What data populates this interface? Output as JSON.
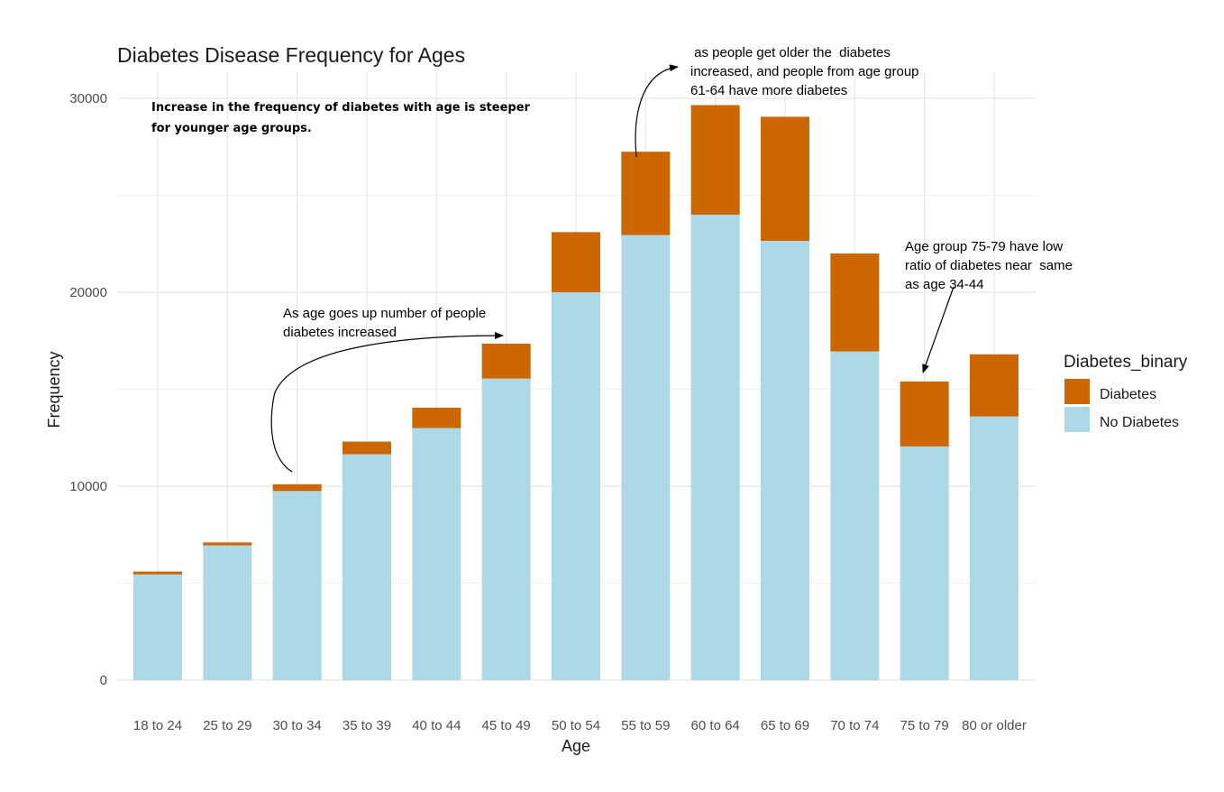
{
  "chart_data": {
    "type": "bar",
    "stacked": true,
    "title": "Diabetes Disease Frequency for Ages",
    "xlabel": "Age",
    "ylabel": "Frequency",
    "ylim": [
      0,
      32000
    ],
    "yticks": [
      0,
      10000,
      20000,
      30000
    ],
    "grid": true,
    "categories": [
      "18 to 24",
      "25 to 29",
      "30 to 34",
      "35 to 39",
      "40 to 44",
      "45 to 49",
      "50 to 54",
      "55 to 59",
      "60 to 64",
      "65 to 69",
      "70 to 74",
      "75 to 79",
      "80 or older"
    ],
    "series": [
      {
        "name": "No Diabetes",
        "color": "#ADD8E6",
        "values": [
          5450,
          6950,
          9750,
          11650,
          13000,
          15550,
          20000,
          22950,
          24000,
          22650,
          16950,
          12050,
          13600
        ]
      },
      {
        "name": "Diabetes",
        "color": "#CC6600",
        "values": [
          150,
          150,
          350,
          650,
          1050,
          1800,
          3100,
          4300,
          5650,
          6400,
          5050,
          3350,
          3200
        ]
      }
    ],
    "legend": {
      "title": "Diabetes_binary",
      "position": "right",
      "items": [
        "Diabetes",
        "No Diabetes"
      ]
    },
    "annotations": {
      "top_left": [
        "Increase in the frequency of diabetes with age is steeper",
        "for younger age groups."
      ],
      "age_up": [
        "As age goes up number of people",
        "diabetes increased"
      ],
      "older": [
        " as people get older the  diabetes",
        "increased, and people from age group",
        "61-64 have more diabetes"
      ],
      "group_75": [
        "Age group 75-79 have low",
        "ratio of diabetes near  same",
        "as age 34-44"
      ]
    }
  }
}
